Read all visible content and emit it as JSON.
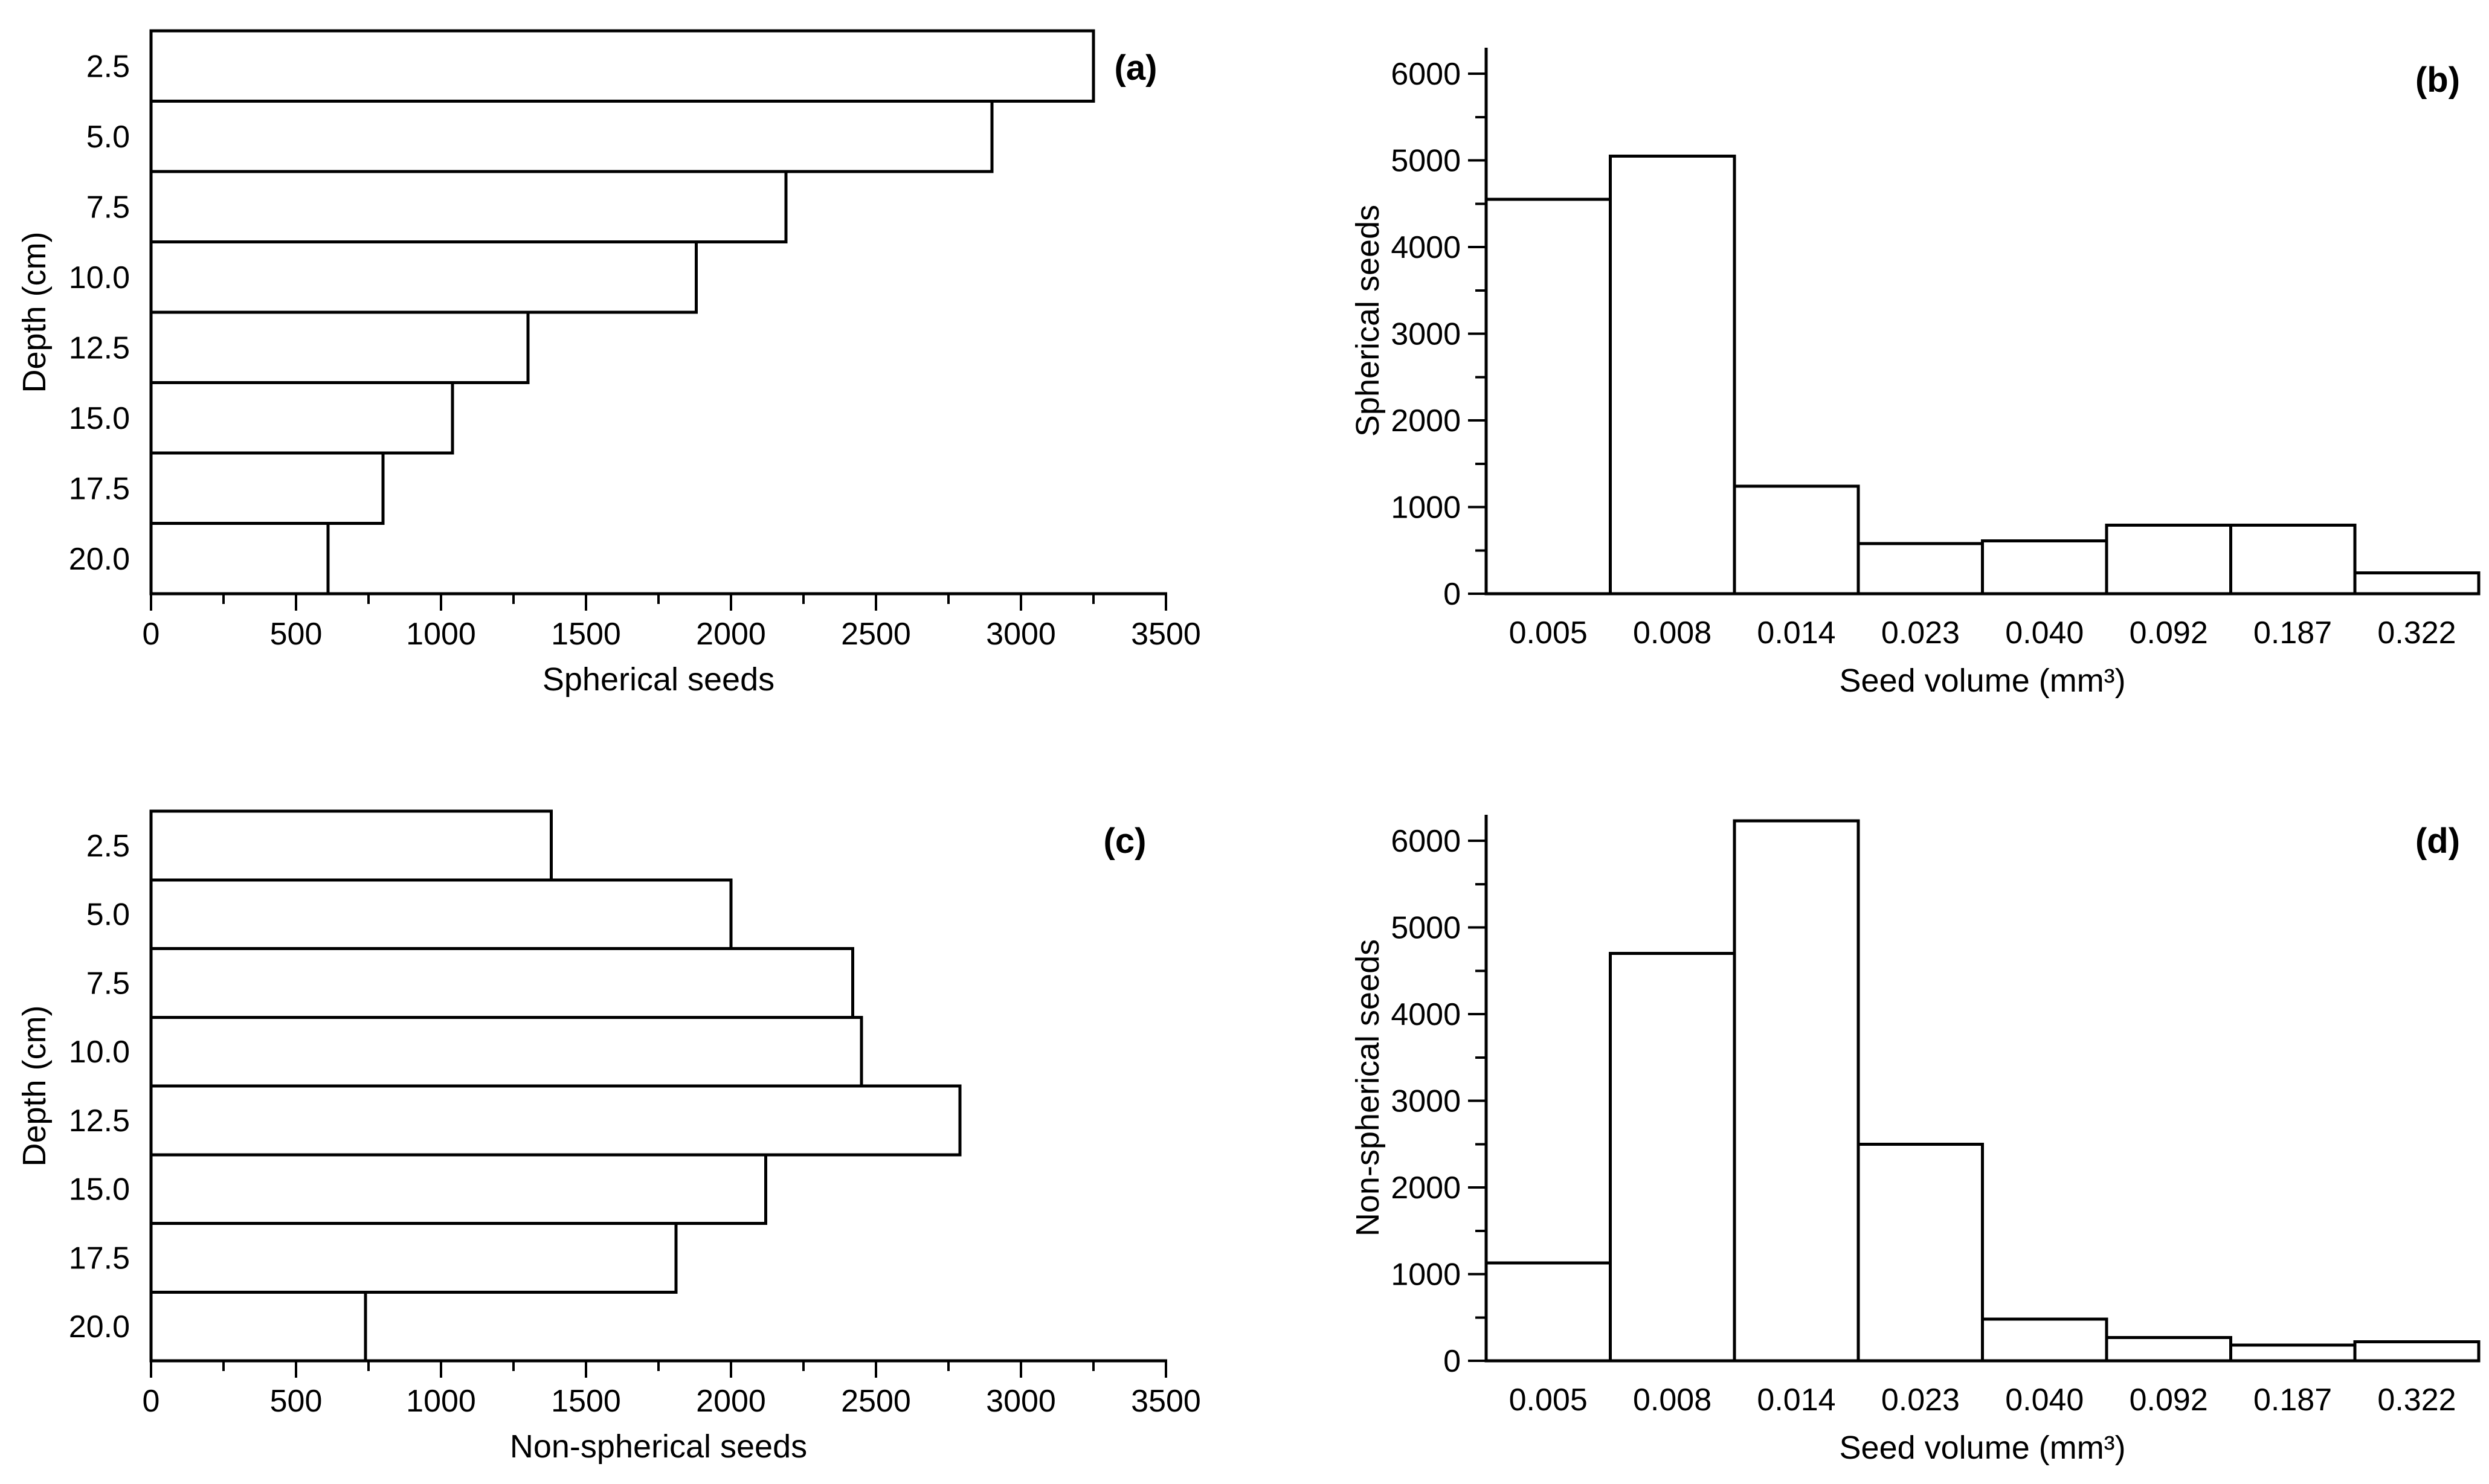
{
  "figure": {
    "background": "#ffffff",
    "ink_color": "#000000",
    "bar_fill": "#ffffff",
    "bar_stroke": "#000000"
  },
  "chart_data": [
    {
      "id": "a",
      "panel_label": "(a)",
      "type": "bar",
      "orientation": "horizontal",
      "title": "",
      "xlabel": "Spherical seeds",
      "ylabel": "Depth (cm)",
      "categories": [
        "2.5",
        "5.0",
        "7.5",
        "10.0",
        "12.5",
        "15.0",
        "17.5",
        "20.0"
      ],
      "values": [
        3250,
        2900,
        2190,
        1880,
        1300,
        1040,
        800,
        610
      ],
      "xlim": [
        0,
        3500
      ],
      "xtick_labels": [
        "0",
        "500",
        "1000",
        "1500",
        "2000",
        "2500",
        "3000",
        "3500"
      ],
      "major_tick_step": 500,
      "minor_tick_step": 250,
      "grid": false,
      "legend": null
    },
    {
      "id": "b",
      "panel_label": "(b)",
      "type": "bar",
      "orientation": "vertical",
      "title": "",
      "xlabel": "Seed volume (mm³)",
      "ylabel": "Spherical seeds",
      "categories": [
        "0.005",
        "0.008",
        "0.014",
        "0.023",
        "0.040",
        "0.092",
        "0.187",
        "0.322"
      ],
      "values": [
        4550,
        5050,
        1240,
        580,
        610,
        790,
        790,
        240
      ],
      "ylim": [
        0,
        6000
      ],
      "ytick_labels": [
        "0",
        "1000",
        "2000",
        "3000",
        "4000",
        "5000",
        "6000"
      ],
      "major_tick_step": 1000,
      "minor_tick_step": 500,
      "grid": false,
      "legend": null
    },
    {
      "id": "c",
      "panel_label": "(c)",
      "type": "bar",
      "orientation": "horizontal",
      "title": "",
      "xlabel": "Non-spherical seeds",
      "ylabel": "Depth (cm)",
      "categories": [
        "2.5",
        "5.0",
        "7.5",
        "10.0",
        "12.5",
        "15.0",
        "17.5",
        "20.0"
      ],
      "values": [
        1380,
        2000,
        2420,
        2450,
        2790,
        2120,
        1810,
        740
      ],
      "xlim": [
        0,
        3500
      ],
      "xtick_labels": [
        "0",
        "500",
        "1000",
        "1500",
        "2000",
        "2500",
        "3000",
        "3500"
      ],
      "major_tick_step": 500,
      "minor_tick_step": 250,
      "grid": false,
      "legend": null
    },
    {
      "id": "d",
      "panel_label": "(d)",
      "type": "bar",
      "orientation": "vertical",
      "title": "",
      "xlabel": "Seed volume (mm³)",
      "ylabel": "Non-spherical seeds",
      "categories": [
        "0.005",
        "0.008",
        "0.014",
        "0.023",
        "0.040",
        "0.092",
        "0.187",
        "0.322"
      ],
      "values": [
        1130,
        4700,
        6230,
        2500,
        480,
        270,
        180,
        220
      ],
      "ylim": [
        0,
        6000
      ],
      "ytick_labels": [
        "0",
        "1000",
        "2000",
        "3000",
        "4000",
        "5000",
        "6000"
      ],
      "major_tick_step": 1000,
      "minor_tick_step": 500,
      "grid": false,
      "legend": null
    }
  ]
}
